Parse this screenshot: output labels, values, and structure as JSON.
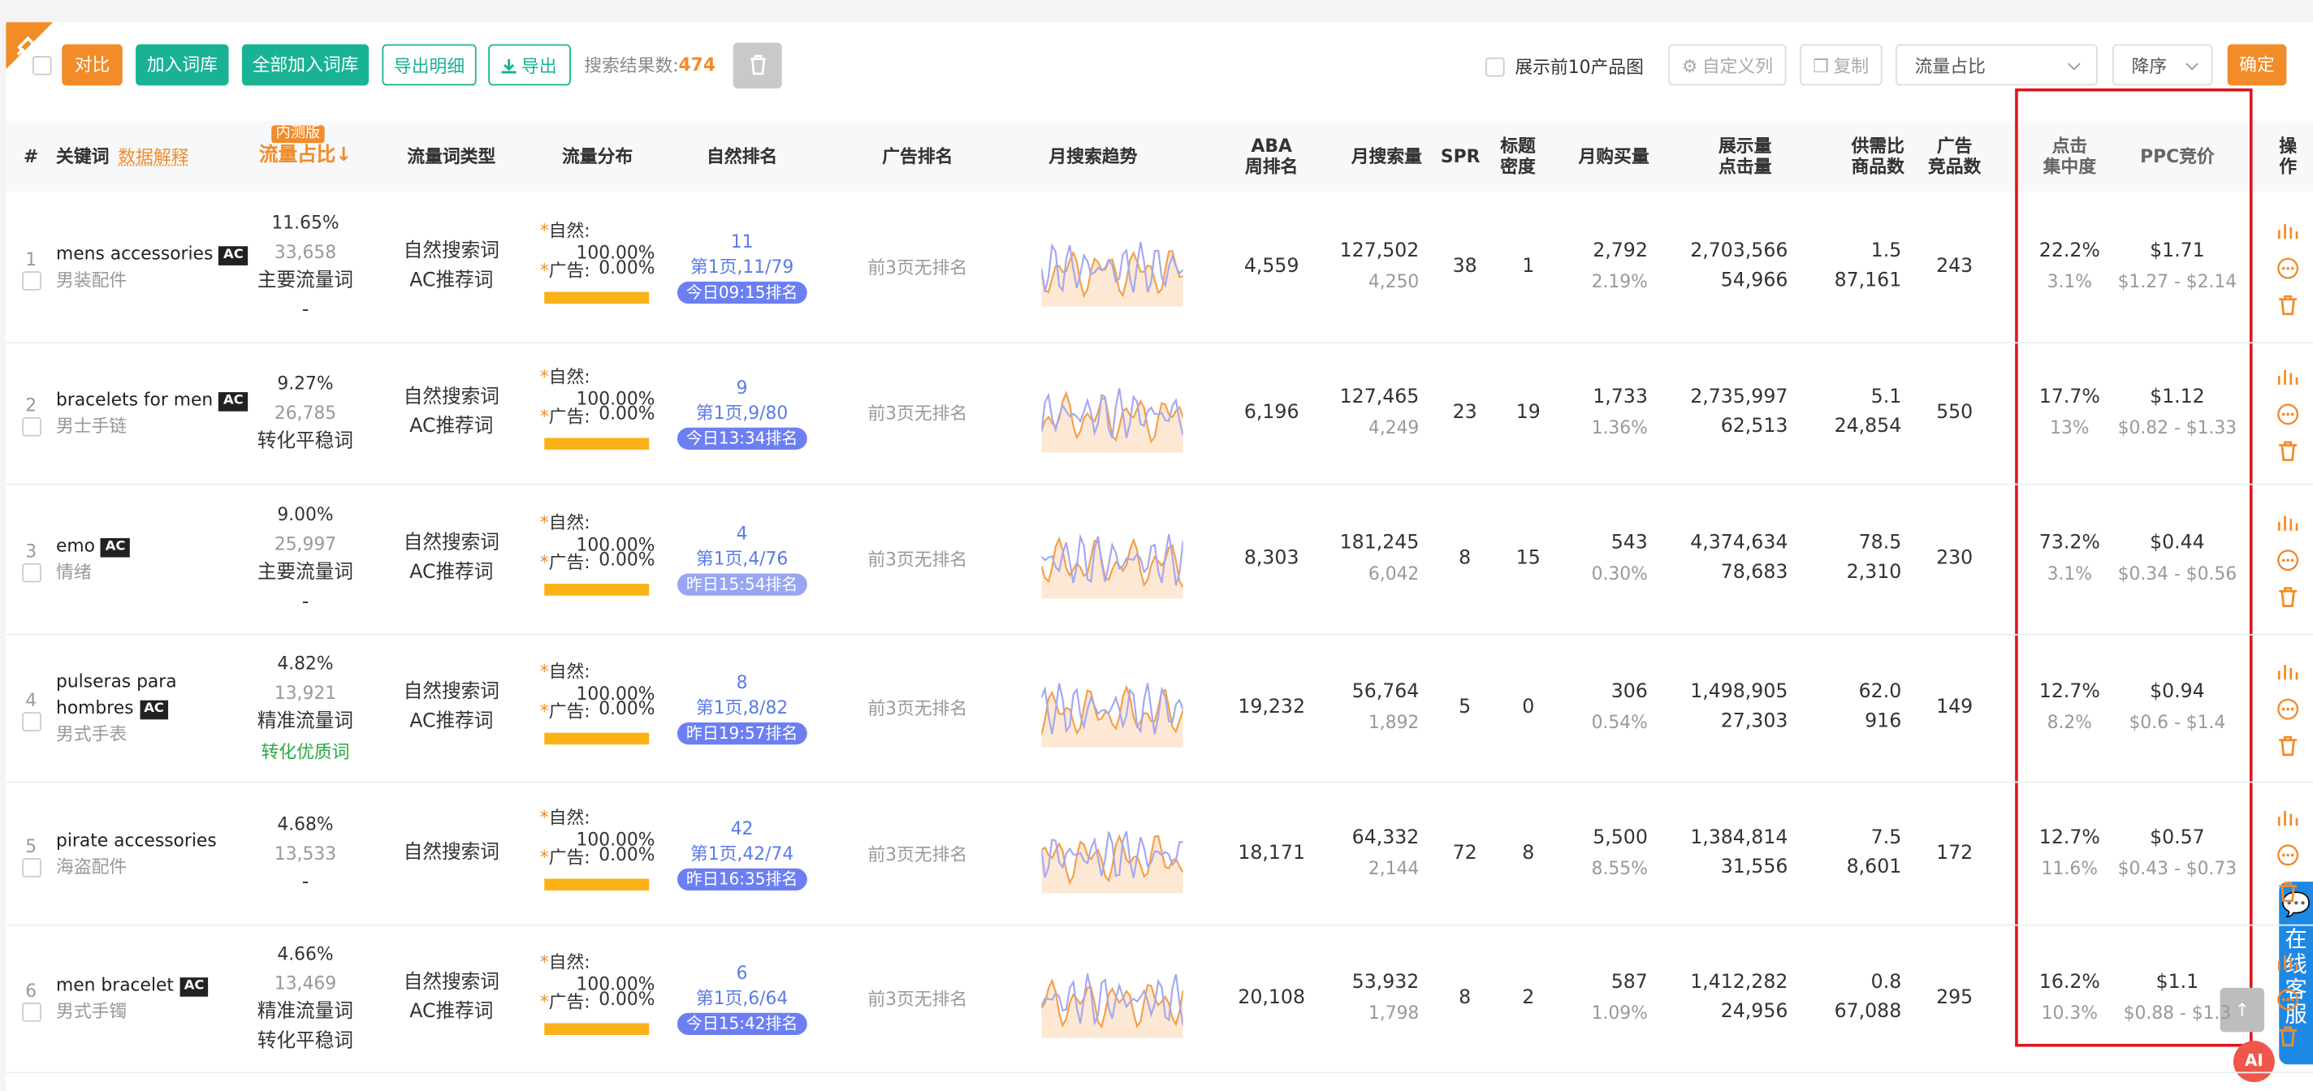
{
  "toolbar": {
    "buttons": [
      "对比",
      "加入词库",
      "全部加入词库",
      "导出明细",
      "导出"
    ],
    "result_label": "搜索结果数:",
    "result_count": "474",
    "show_images": "展示前10产品图",
    "custom_columns": "自定义列",
    "copy": "复制",
    "sort_field": "流量占比",
    "sort_order": "降序",
    "confirm": "确定"
  },
  "table": {
    "headers": [
      "#",
      "关键词",
      "数据解释",
      "内测版",
      "流量占比↓",
      "流量词类型",
      "流量分布",
      "自然排名",
      "广告排名",
      "月搜索趋势",
      "ABA\n周排名",
      "月搜索量",
      "SPR",
      "标题\n密度",
      "月购买量",
      "展示量\n点击量",
      "供需比\n商品数",
      "广告\n竞品数",
      "点击\n集中度",
      "PPC竞价",
      "操作"
    ],
    "dist_mark": "*",
    "dist_labels": [
      "自然:",
      "广告:"
    ],
    "rows": [
      {
        "index": "1",
        "keyword": "mens accessories",
        "badge": "AC",
        "cn": "男装配件",
        "share": "11.65%",
        "share_count": "33,658",
        "tags": [
          {
            "text": "主要流量词"
          },
          {
            "text": "-"
          }
        ],
        "types": [
          "自然搜索词",
          "AC推荐词"
        ],
        "dist": [
          "100.00%",
          "0.00%"
        ],
        "rank": "11",
        "rank_page": "第1页,11/79",
        "rank_time": "今日09:15排名",
        "time_color": "#6c7ff2",
        "ad_rank": "前3页无排名",
        "aba": "4,559",
        "search": "127,502",
        "search_sub": "4,250",
        "spr": "38",
        "density": "1",
        "buy": "2,792",
        "buy_rate": "2.19%",
        "impressions": "2,703,566",
        "clicks": "54,966",
        "sd_ratio": "1.5",
        "products": "87,161",
        "ad_comp": "243",
        "click_conc": "22.2%",
        "click_conc_sub": "3.1%",
        "ppc": "$1.71",
        "ppc_range": "$1.27 - $2.14"
      },
      {
        "index": "2",
        "keyword": "bracelets for men",
        "badge": "AC",
        "cn": "男士手链",
        "share": "9.27%",
        "share_count": "26,785",
        "tags": [
          {
            "text": "转化平稳词"
          }
        ],
        "types": [
          "自然搜索词",
          "AC推荐词"
        ],
        "dist": [
          "100.00%",
          "0.00%"
        ],
        "rank": "9",
        "rank_page": "第1页,9/80",
        "rank_time": "今日13:34排名",
        "time_color": "#6c7ff2",
        "ad_rank": "前3页无排名",
        "aba": "6,196",
        "search": "127,465",
        "search_sub": "4,249",
        "spr": "23",
        "density": "19",
        "buy": "1,733",
        "buy_rate": "1.36%",
        "impressions": "2,735,997",
        "clicks": "62,513",
        "sd_ratio": "5.1",
        "products": "24,854",
        "ad_comp": "550",
        "click_conc": "17.7%",
        "click_conc_sub": "13%",
        "ppc": "$1.12",
        "ppc_range": "$0.82 - $1.33"
      },
      {
        "index": "3",
        "keyword": "emo",
        "badge": "AC",
        "cn": "情绪",
        "share": "9.00%",
        "share_count": "25,997",
        "tags": [
          {
            "text": "主要流量词"
          },
          {
            "text": "-"
          }
        ],
        "types": [
          "自然搜索词",
          "AC推荐词"
        ],
        "dist": [
          "100.00%",
          "0.00%"
        ],
        "rank": "4",
        "rank_page": "第1页,4/76",
        "rank_time": "昨日15:54排名",
        "time_color": "#97a5f3",
        "ad_rank": "前3页无排名",
        "aba": "8,303",
        "search": "181,245",
        "search_sub": "6,042",
        "spr": "8",
        "density": "15",
        "buy": "543",
        "buy_rate": "0.30%",
        "impressions": "4,374,634",
        "clicks": "78,683",
        "sd_ratio": "78.5",
        "products": "2,310",
        "ad_comp": "230",
        "click_conc": "73.2%",
        "click_conc_sub": "3.1%",
        "ppc": "$0.44",
        "ppc_range": "$0.34 - $0.56"
      },
      {
        "index": "4",
        "keyword": "pulseras para hombres",
        "badge": "AC",
        "cn": "男式手表",
        "share": "4.82%",
        "share_count": "13,921",
        "tags": [
          {
            "text": "精准流量词"
          },
          {
            "text": "转化优质词",
            "color": "#2aa845"
          }
        ],
        "types": [
          "自然搜索词",
          "AC推荐词"
        ],
        "dist": [
          "100.00%",
          "0.00%"
        ],
        "rank": "8",
        "rank_page": "第1页,8/82",
        "rank_time": "昨日19:57排名",
        "time_color": "#6c7ff2",
        "ad_rank": "前3页无排名",
        "aba": "19,232",
        "search": "56,764",
        "search_sub": "1,892",
        "spr": "5",
        "density": "0",
        "buy": "306",
        "buy_rate": "0.54%",
        "impressions": "1,498,905",
        "clicks": "27,303",
        "sd_ratio": "62.0",
        "products": "916",
        "ad_comp": "149",
        "click_conc": "12.7%",
        "click_conc_sub": "8.2%",
        "ppc": "$0.94",
        "ppc_range": "$0.6 - $1.4"
      },
      {
        "index": "5",
        "keyword": "pirate accessories",
        "badge": null,
        "cn": "海盗配件",
        "share": "4.68%",
        "share_count": "13,533",
        "tags": [
          {
            "text": "-"
          }
        ],
        "types": [
          "自然搜索词"
        ],
        "dist": [
          "100.00%",
          "0.00%"
        ],
        "rank": "42",
        "rank_page": "第1页,42/74",
        "rank_time": "昨日16:35排名",
        "time_color": "#6c7ff2",
        "ad_rank": "前3页无排名",
        "aba": "18,171",
        "search": "64,332",
        "search_sub": "2,144",
        "spr": "72",
        "density": "8",
        "buy": "5,500",
        "buy_rate": "8.55%",
        "impressions": "1,384,814",
        "clicks": "31,556",
        "sd_ratio": "7.5",
        "products": "8,601",
        "ad_comp": "172",
        "click_conc": "12.7%",
        "click_conc_sub": "11.6%",
        "ppc": "$0.57",
        "ppc_range": "$0.43 - $0.73"
      },
      {
        "index": "6",
        "keyword": "men bracelet",
        "badge": "AC",
        "cn": "男式手镯",
        "share": "4.66%",
        "share_count": "13,469",
        "tags": [
          {
            "text": "精准流量词"
          },
          {
            "text": "转化平稳词"
          }
        ],
        "types": [
          "自然搜索词",
          "AC推荐词"
        ],
        "dist": [
          "100.00%",
          "0.00%"
        ],
        "rank": "6",
        "rank_page": "第1页,6/64",
        "rank_time": "今日15:42排名",
        "time_color": "#6c7ff2",
        "ad_rank": "前3页无排名",
        "aba": "20,108",
        "search": "53,932",
        "search_sub": "1,798",
        "spr": "8",
        "density": "2",
        "buy": "587",
        "buy_rate": "1.09%",
        "impressions": "1,412,282",
        "clicks": "24,956",
        "sd_ratio": "0.8",
        "products": "67,088",
        "ad_comp": "295",
        "click_conc": "16.2%",
        "click_conc_sub": "10.3%",
        "ppc": "$1.1",
        "ppc_range": "$0.88 - $1.3"
      }
    ]
  },
  "float": {
    "service": "在线客服",
    "ai": "AI"
  }
}
